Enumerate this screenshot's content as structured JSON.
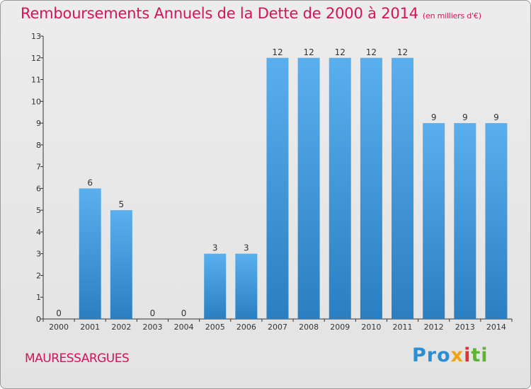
{
  "chart_data": {
    "type": "bar",
    "title": "Remboursements Annuels de la Dette de 2000 à 2014",
    "subtitle": "(en milliers d'€)",
    "categories": [
      "2000",
      "2001",
      "2002",
      "2003",
      "2004",
      "2005",
      "2006",
      "2007",
      "2008",
      "2009",
      "2010",
      "2011",
      "2012",
      "2013",
      "2014"
    ],
    "values": [
      0,
      6,
      5,
      0,
      0,
      3,
      3,
      12,
      12,
      12,
      12,
      12,
      9,
      9,
      9
    ],
    "xlabel": "",
    "ylabel": "",
    "ylim": [
      0,
      13
    ],
    "yticks": [
      0,
      1,
      2,
      3,
      4,
      5,
      6,
      7,
      8,
      9,
      10,
      11,
      12,
      13
    ],
    "grid": false,
    "legend": "none"
  },
  "location": "MAURESSARGUES",
  "logo": {
    "p1": "Pro",
    "p2": "x",
    "p3": "i",
    "p4": "ti"
  },
  "colors": {
    "title": "#d4145a",
    "bar_top": "#5aafee",
    "bar_bottom": "#2a7fc2",
    "axis": "#333333",
    "text": "#333333"
  }
}
